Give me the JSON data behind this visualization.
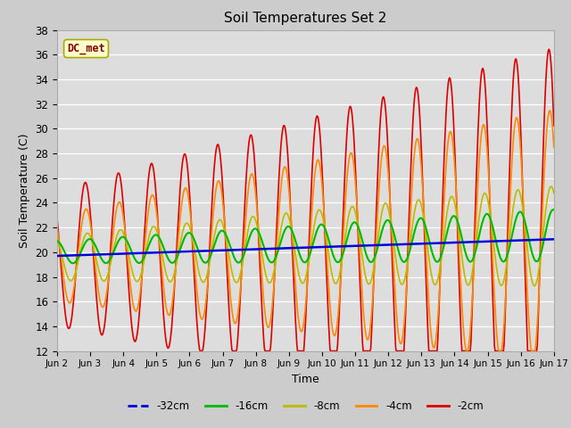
{
  "title": "Soil Temperatures Set 2",
  "xlabel": "Time",
  "ylabel": "Soil Temperature (C)",
  "ylim": [
    12,
    38
  ],
  "xlim": [
    0,
    15
  ],
  "xtick_labels": [
    "Jun 2",
    "Jun 3",
    "Jun 4",
    "Jun 5",
    "Jun 6",
    "Jun 7",
    "Jun 8",
    "Jun 9",
    "Jun 10",
    "Jun 11",
    "Jun 12",
    "Jun 13",
    "Jun 14",
    "Jun 15",
    "Jun 16",
    "Jun 17"
  ],
  "legend_labels": [
    "-32cm",
    "-16cm",
    "-8cm",
    "-4cm",
    "-2cm"
  ],
  "legend_colors": [
    "#0000dd",
    "#00bb00",
    "#bbbb00",
    "#ff8800",
    "#dd0000"
  ],
  "annotation_text": "DC_met",
  "bg_color": "#cccccc",
  "plot_bg_color": "#dddddd",
  "mean_temp": 19.5,
  "trend": 0.12
}
